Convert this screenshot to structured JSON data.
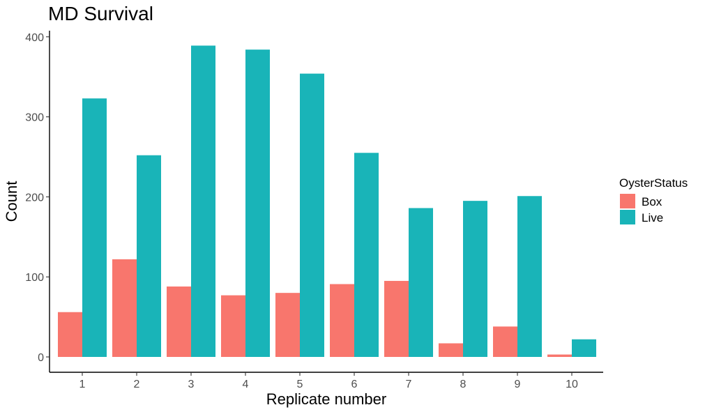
{
  "chart_data": {
    "type": "bar",
    "title": "MD Survival",
    "xlabel": "Replicate number",
    "ylabel": "Count",
    "categories": [
      "1",
      "2",
      "3",
      "4",
      "5",
      "6",
      "7",
      "8",
      "9",
      "10"
    ],
    "series": [
      {
        "name": "Box",
        "color": "#F8766D",
        "values": [
          56,
          122,
          88,
          77,
          80,
          91,
          95,
          17,
          38,
          3
        ]
      },
      {
        "name": "Live",
        "color": "#19B4B8",
        "values": [
          323,
          252,
          389,
          384,
          354,
          255,
          186,
          195,
          201,
          22
        ]
      }
    ],
    "yticks": [
      "0",
      "100",
      "200",
      "300",
      "400"
    ],
    "ylim": [
      0,
      400
    ],
    "grid": false,
    "legend": {
      "title": "OysterStatus",
      "placement": "right"
    }
  }
}
